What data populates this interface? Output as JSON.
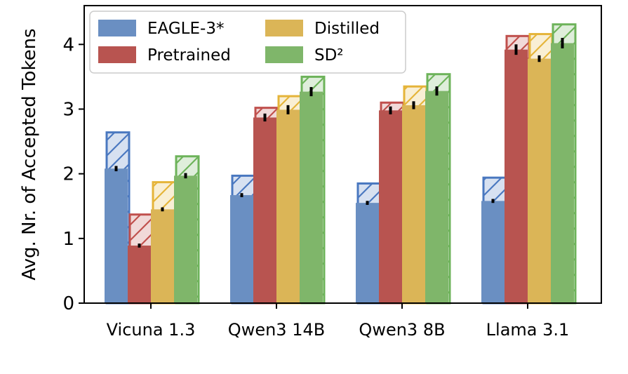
{
  "chart_data": {
    "type": "bar",
    "categories": [
      "Vicuna 1.3",
      "Qwen3 14B",
      "Qwen3 8B",
      "Llama 3.1"
    ],
    "ylabel": "Avg. Nr. of Accepted Tokens",
    "xlabel": "",
    "ylim": [
      0,
      4.6
    ],
    "yticks": [
      0,
      1,
      2,
      3,
      4
    ],
    "grid": false,
    "legend": {
      "placement": "top-left",
      "columns": 2
    },
    "series": [
      {
        "name": "EAGLE-3*",
        "color": "#6a8fc2",
        "hatch_color": "#4a78c0",
        "values": [
          2.08,
          1.67,
          1.55,
          1.58
        ],
        "hatched_values": [
          2.64,
          1.97,
          1.85,
          1.94
        ],
        "errors": [
          0.03,
          0.02,
          0.02,
          0.02
        ]
      },
      {
        "name": "Pretrained",
        "color": "#b85450",
        "hatch_color": "#c0504d",
        "values": [
          0.89,
          2.87,
          2.98,
          3.92
        ],
        "hatched_values": [
          1.37,
          3.02,
          3.1,
          4.13
        ],
        "errors": [
          0.02,
          0.05,
          0.05,
          0.07
        ]
      },
      {
        "name": "Distilled",
        "color": "#dbb557",
        "hatch_color": "#e5b43a",
        "values": [
          1.45,
          2.99,
          3.06,
          3.78
        ],
        "hatched_values": [
          1.87,
          3.2,
          3.35,
          4.16
        ],
        "errors": [
          0.02,
          0.06,
          0.05,
          0.04
        ]
      },
      {
        "name": "SD²",
        "color": "#7fb66a",
        "hatch_color": "#6db35a",
        "values": [
          1.97,
          3.27,
          3.28,
          4.02
        ],
        "hatched_values": [
          2.27,
          3.5,
          3.54,
          4.31
        ],
        "errors": [
          0.03,
          0.06,
          0.06,
          0.07
        ]
      }
    ]
  }
}
